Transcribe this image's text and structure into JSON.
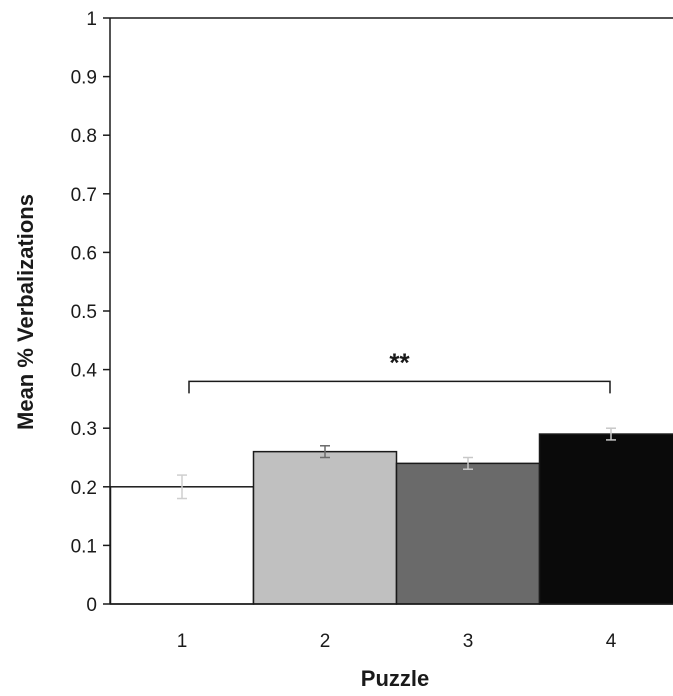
{
  "chart_data": {
    "type": "bar",
    "categories": [
      "1",
      "2",
      "3",
      "4"
    ],
    "values": [
      0.2,
      0.26,
      0.24,
      0.29
    ],
    "errors": [
      0.02,
      0.01,
      0.01,
      0.01
    ],
    "bar_colors": [
      "#ffffff",
      "#c0c0c0",
      "#6a6a6a",
      "#0a0a0a"
    ],
    "error_bar_colors": [
      "#cfcfcf",
      "#6a6a6a",
      "#c8c8c8",
      "#c8c8c8"
    ],
    "xlabel": "Puzzle",
    "ylabel": "Mean % Verbalizations",
    "ylim": [
      0,
      1
    ],
    "yticks": [
      "0",
      "0.1",
      "0.2",
      "0.3",
      "0.4",
      "0.5",
      "0.6",
      "0.7",
      "0.8",
      "0.9",
      "1"
    ],
    "grid": false,
    "annotations": [
      {
        "type": "significance-bracket",
        "from": "1",
        "to": "4",
        "y": 0.38,
        "label": "**"
      }
    ]
  }
}
